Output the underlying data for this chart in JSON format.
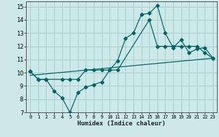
{
  "background_color": "#cce8e8",
  "grid_color": "#aacccc",
  "line_color": "#006666",
  "xlabel": "Humidex (Indice chaleur)",
  "xlim": [
    -0.5,
    23.5
  ],
  "ylim": [
    7,
    15.4
  ],
  "xticks": [
    0,
    1,
    2,
    3,
    4,
    5,
    6,
    7,
    8,
    9,
    10,
    11,
    12,
    13,
    14,
    15,
    16,
    17,
    18,
    19,
    20,
    21,
    22,
    23
  ],
  "yticks": [
    7,
    8,
    9,
    10,
    11,
    12,
    13,
    14,
    15
  ],
  "line1_x": [
    0,
    1,
    2,
    3,
    4,
    5,
    6,
    7,
    8,
    9,
    10,
    11,
    12,
    13,
    14,
    15,
    16,
    17,
    18,
    19,
    20,
    21,
    22,
    23
  ],
  "line1_y": [
    10.1,
    9.5,
    9.5,
    8.6,
    8.1,
    7.0,
    8.5,
    8.9,
    9.1,
    9.3,
    10.2,
    10.9,
    12.6,
    13.0,
    14.4,
    14.5,
    15.1,
    13.0,
    11.9,
    12.5,
    11.5,
    11.8,
    11.9,
    11.1
  ],
  "line2_x": [
    0,
    1,
    2,
    4,
    5,
    6,
    7,
    8,
    9,
    10,
    11,
    15,
    16,
    17,
    18,
    19,
    20,
    21,
    22,
    23
  ],
  "line2_y": [
    10.1,
    9.5,
    9.5,
    9.5,
    9.5,
    9.5,
    10.2,
    10.2,
    10.2,
    10.2,
    10.2,
    14.0,
    12.0,
    12.0,
    12.0,
    12.0,
    12.0,
    12.0,
    11.5,
    11.1
  ],
  "line3_x": [
    0,
    23
  ],
  "line3_y": [
    9.8,
    11.1
  ]
}
